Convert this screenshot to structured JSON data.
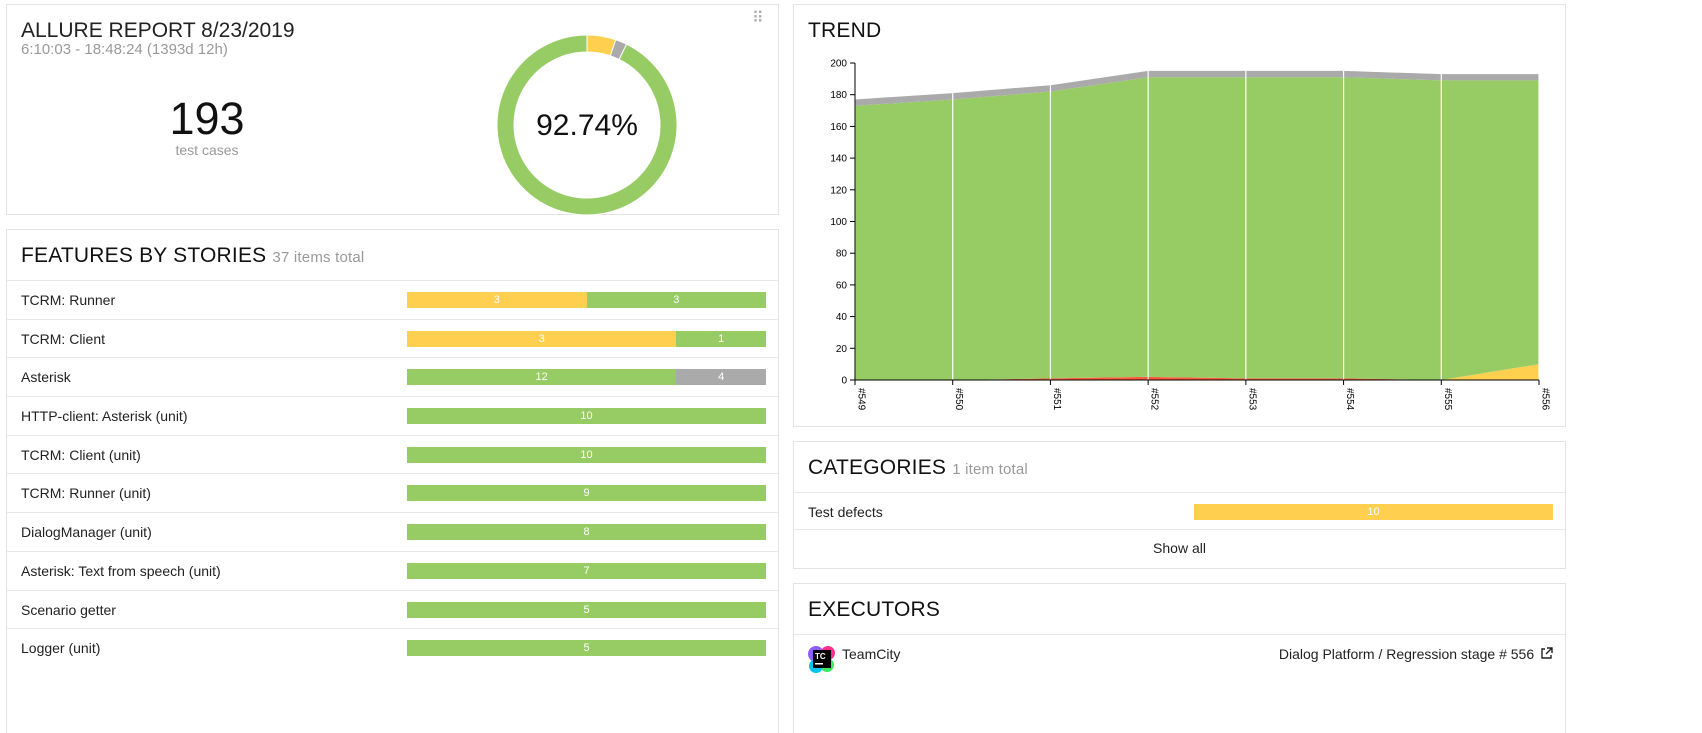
{
  "colors": {
    "passed": "#97cc64",
    "broken": "#ffd050",
    "skipped": "#aaaaaa",
    "failed": "#fd5a3e",
    "unknown": "#d35ebe"
  },
  "summary": {
    "title": "ALLURE REPORT 8/23/2019",
    "range": "6:10:03 - 18:48:24 (1393d 12h)",
    "count": "193",
    "count_label": "test cases",
    "percent": "92.74%",
    "donut": {
      "passed": 179,
      "broken": 10,
      "skipped": 4
    }
  },
  "features": {
    "title": "FEATURES BY STORIES",
    "total": "37 items total",
    "items": [
      {
        "name": "TCRM: Runner",
        "segments": [
          {
            "status": "broken",
            "value": 3
          },
          {
            "status": "passed",
            "value": 3
          }
        ]
      },
      {
        "name": "TCRM: Client",
        "segments": [
          {
            "status": "broken",
            "value": 3
          },
          {
            "status": "passed",
            "value": 1
          }
        ]
      },
      {
        "name": "Asterisk",
        "segments": [
          {
            "status": "passed",
            "value": 12
          },
          {
            "status": "skipped",
            "value": 4
          }
        ]
      },
      {
        "name": "HTTP-client: Asterisk (unit)",
        "segments": [
          {
            "status": "passed",
            "value": 10
          }
        ]
      },
      {
        "name": "TCRM: Client (unit)",
        "segments": [
          {
            "status": "passed",
            "value": 10
          }
        ]
      },
      {
        "name": "TCRM: Runner (unit)",
        "segments": [
          {
            "status": "passed",
            "value": 9
          }
        ]
      },
      {
        "name": "DialogManager (unit)",
        "segments": [
          {
            "status": "passed",
            "value": 8
          }
        ]
      },
      {
        "name": "Asterisk: Text from speech (unit)",
        "segments": [
          {
            "status": "passed",
            "value": 7
          }
        ]
      },
      {
        "name": "Scenario getter",
        "segments": [
          {
            "status": "passed",
            "value": 5
          }
        ]
      },
      {
        "name": "Logger (unit)",
        "segments": [
          {
            "status": "passed",
            "value": 5
          }
        ]
      }
    ]
  },
  "trend": {
    "title": "TREND"
  },
  "chart_data": {
    "type": "area",
    "stacked": true,
    "x": [
      "#549",
      "#550",
      "#551",
      "#552",
      "#553",
      "#554",
      "#555",
      "#556"
    ],
    "ylim": [
      0,
      200
    ],
    "yticks": [
      0,
      20,
      40,
      60,
      80,
      100,
      120,
      140,
      160,
      180,
      200
    ],
    "grid": "vertical",
    "series": [
      {
        "status": "failed",
        "values": [
          0,
          0,
          1,
          2,
          1,
          1,
          0,
          0
        ]
      },
      {
        "status": "broken",
        "values": [
          0,
          0,
          0,
          0,
          0,
          0,
          0,
          10
        ]
      },
      {
        "status": "passed",
        "values": [
          173,
          177,
          181,
          189,
          190,
          190,
          189,
          179
        ]
      },
      {
        "status": "skipped",
        "values": [
          4,
          4,
          4,
          4,
          4,
          4,
          4,
          4
        ]
      }
    ]
  },
  "categories": {
    "title": "CATEGORIES",
    "total": "1 item total",
    "items": [
      {
        "name": "Test defects",
        "value": "10",
        "status": "broken"
      }
    ],
    "show_all": "Show all"
  },
  "executors": {
    "title": "EXECUTORS",
    "items": [
      {
        "name": "TeamCity",
        "logo": "TC",
        "link": "Dialog Platform / Regression stage # 556"
      }
    ]
  }
}
